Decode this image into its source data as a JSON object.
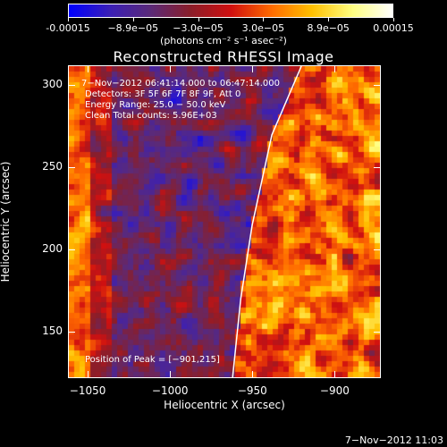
{
  "colorbar": {
    "gradient": [
      "#0000ff",
      "#3a1fb8",
      "#5a2a7a",
      "#8a1e2a",
      "#d01010",
      "#ff6a00",
      "#ffc000",
      "#ffff80",
      "#ffffff"
    ],
    "tick_labels": [
      "-0.00015",
      "−8.9e−05",
      "−3.0e−05",
      "3.0e−05",
      "8.9e−05",
      "0.00015"
    ],
    "units": "(photons cm⁻² s⁻¹ asec⁻²)"
  },
  "title": "Reconstructed RHESSI Image",
  "info": {
    "time_range": "7−Nov−2012 06:41:14.000 to 06:47:14.000",
    "detectors": "Detectors: 3F 5F 6F 7F 8F 9F, Att 0",
    "energy_range": "Energy Range: 25.0 − 50.0 keV",
    "method_counts": "Clean     Total counts: 5.96E+03",
    "peak": "Position of Peak = [−901,215]"
  },
  "axes": {
    "xlabel": "Heliocentric X (arcsec)",
    "ylabel": "Heliocentric Y (arcsec)",
    "xlim": [
      -1062,
      -872
    ],
    "ylim": [
      122,
      312
    ],
    "xticks": [
      -1050,
      -1000,
      -950,
      -900
    ],
    "xtick_labels": [
      "−1050",
      "−1000",
      "−950",
      "−900"
    ],
    "yticks": [
      150,
      200,
      250,
      300
    ],
    "ytick_labels": [
      "150",
      "200",
      "250",
      "300"
    ]
  },
  "limb": {
    "points": [
      [
        -920,
        312
      ],
      [
        -938,
        270
      ],
      [
        -950,
        215
      ],
      [
        -957,
        170
      ],
      [
        -962,
        122
      ]
    ]
  },
  "timestamp": "7−Nov−2012 11:03"
}
